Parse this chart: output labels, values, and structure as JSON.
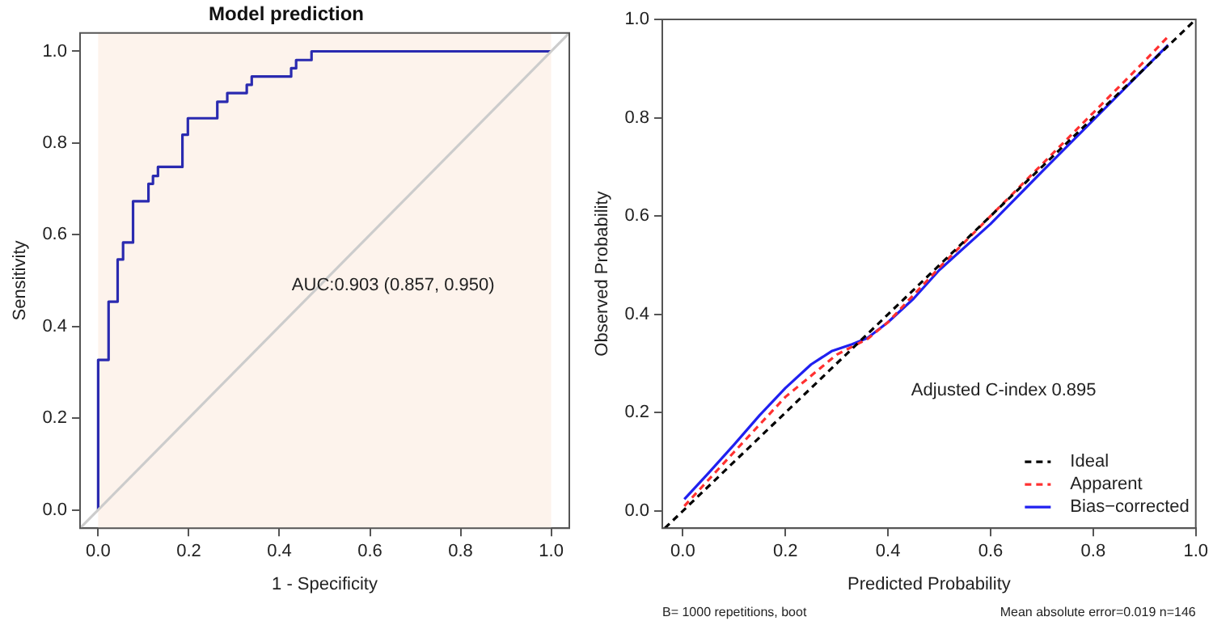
{
  "chart_data": [
    {
      "type": "line",
      "title": "Model prediction",
      "xlabel": "1 - Specificity",
      "ylabel": "Sensitivity",
      "xlim": [
        -0.04,
        1.04
      ],
      "ylim": [
        -0.04,
        1.04
      ],
      "xticks": [
        {
          "value": 0,
          "label": "0.0"
        },
        {
          "value": 0.2,
          "label": "0.2"
        },
        {
          "value": 0.4,
          "label": "0.4"
        },
        {
          "value": 0.6,
          "label": "0.6"
        },
        {
          "value": 0.8,
          "label": "0.8"
        },
        {
          "value": 1,
          "label": "1.0"
        }
      ],
      "yticks": [
        {
          "value": 0,
          "label": "0.0"
        },
        {
          "value": 0.2,
          "label": "0.2"
        },
        {
          "value": 0.4,
          "label": "0.4"
        },
        {
          "value": 0.6,
          "label": "0.6"
        },
        {
          "value": 0.8,
          "label": "0.8"
        },
        {
          "value": 1,
          "label": "1.0"
        }
      ],
      "bands": [
        {
          "axis": "x",
          "from": 0,
          "to": 1,
          "color": "#fdf3ec"
        }
      ],
      "annotations": [
        "AUC:0.903 (0.857, 0.950)"
      ],
      "series": [
        {
          "type": "line",
          "color": "#cccccc",
          "x": [
            -0.04,
            1.04
          ],
          "values": [
            -0.04,
            1.04
          ]
        },
        {
          "type": "step",
          "color": "#2a2ab0",
          "x": [
            0,
            0,
            0.023,
            0.043,
            0.055,
            0.077,
            0.111,
            0.121,
            0.132,
            0.186,
            0.198,
            0.263,
            0.285,
            0.328,
            0.339,
            0.426,
            0.437,
            0.471,
            1
          ],
          "values": [
            0,
            0.327,
            0.454,
            0.546,
            0.583,
            0.673,
            0.711,
            0.728,
            0.748,
            0.818,
            0.854,
            0.89,
            0.909,
            0.927,
            0.945,
            0.963,
            0.981,
            1,
            1
          ]
        }
      ]
    },
    {
      "type": "line",
      "xlabel": "Predicted Probability",
      "ylabel": "Observed Probability",
      "legend": "bottom right",
      "xlim": [
        -0.04,
        1
      ],
      "ylim": [
        -0.035,
        1
      ],
      "xticks": [
        {
          "value": 0,
          "label": "0.0"
        },
        {
          "value": 0.2,
          "label": "0.2"
        },
        {
          "value": 0.4,
          "label": "0.4"
        },
        {
          "value": 0.6,
          "label": "0.6"
        },
        {
          "value": 0.8,
          "label": "0.8"
        },
        {
          "value": 1,
          "label": "1.0"
        }
      ],
      "yticks": [
        {
          "value": 0,
          "label": "0.0"
        },
        {
          "value": 0.2,
          "label": "0.2"
        },
        {
          "value": 0.4,
          "label": "0.4"
        },
        {
          "value": 0.6,
          "label": "0.6"
        },
        {
          "value": 0.8,
          "label": "0.8"
        },
        {
          "value": 1,
          "label": "1.0"
        }
      ],
      "annotations": [
        "Adjusted C-index 0.895",
        "B= 1000 repetitions, boot",
        "Mean absolute error=0.019 n=146"
      ],
      "series": [
        {
          "name": "Ideal",
          "type": "line",
          "line_style": "dashed",
          "color": "#000000",
          "x": [
            -0.035,
            1
          ],
          "values": [
            -0.035,
            1
          ]
        },
        {
          "name": "Apparent",
          "type": "line",
          "line_style": "dashed",
          "color": "#ff3030",
          "x": [
            0.003,
            0.1,
            0.2,
            0.3,
            0.36,
            0.4,
            0.5,
            0.6,
            0.7,
            0.8,
            0.9,
            0.946
          ],
          "values": [
            0.01,
            0.12,
            0.232,
            0.318,
            0.35,
            0.384,
            0.495,
            0.6,
            0.705,
            0.81,
            0.915,
            0.965
          ]
        },
        {
          "name": "Bias−corrected",
          "type": "line",
          "color": "#2020f0",
          "x": [
            0.003,
            0.05,
            0.1,
            0.15,
            0.2,
            0.25,
            0.29,
            0.33,
            0.36,
            0.4,
            0.45,
            0.5,
            0.6,
            0.7,
            0.8,
            0.9,
            0.946
          ],
          "values": [
            0.024,
            0.077,
            0.135,
            0.195,
            0.25,
            0.298,
            0.325,
            0.339,
            0.352,
            0.384,
            0.432,
            0.49,
            0.584,
            0.69,
            0.795,
            0.9,
            0.948
          ]
        }
      ]
    }
  ]
}
